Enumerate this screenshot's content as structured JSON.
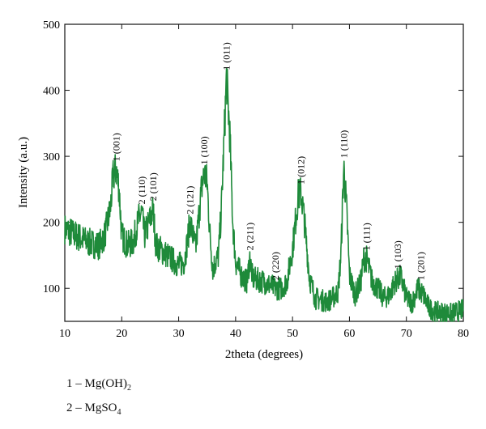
{
  "chart_data": {
    "type": "line",
    "title": "",
    "xlabel": "2theta (degrees)",
    "ylabel": "Intensity (a.u.)",
    "xlim": [
      10,
      80
    ],
    "ylim": [
      50,
      500
    ],
    "xticks": [
      "10",
      "20",
      "30",
      "40",
      "50",
      "60",
      "70",
      "80"
    ],
    "yticks": [
      "100",
      "200",
      "300",
      "400",
      "500"
    ],
    "grid": false,
    "legend": "none",
    "line_color": "#1e8a3a",
    "series": [
      {
        "x": [
          10,
          12,
          14,
          16,
          17,
          18,
          18.5,
          19,
          19.5,
          20,
          21,
          22,
          23,
          23.5,
          24,
          25,
          25.5,
          26,
          28,
          30,
          31,
          32,
          33,
          34,
          34.5,
          35,
          35.5,
          36,
          37,
          37.5,
          38,
          38.4,
          39,
          39.5,
          40,
          41,
          42,
          42.5,
          43,
          45,
          47,
          48,
          49,
          50,
          51,
          51.5,
          52,
          53,
          54,
          56,
          57,
          58,
          58.5,
          59,
          59.5,
          60,
          61,
          62,
          62.5,
          63,
          64,
          65,
          66,
          67,
          68,
          69,
          70,
          71,
          72,
          73,
          74,
          75,
          78,
          80
        ],
        "values": [
          190,
          180,
          170,
          165,
          180,
          220,
          270,
          280,
          255,
          180,
          165,
          170,
          205,
          215,
          180,
          205,
          220,
          165,
          150,
          135,
          140,
          200,
          160,
          250,
          275,
          260,
          180,
          130,
          150,
          220,
          330,
          420,
          330,
          200,
          140,
          120,
          110,
          145,
          115,
          110,
          100,
          100,
          110,
          160,
          240,
          245,
          210,
          115,
          85,
          80,
          85,
          95,
          150,
          285,
          220,
          120,
          90,
          110,
          145,
          145,
          110,
          100,
          85,
          90,
          110,
          118,
          85,
          78,
          100,
          90,
          70,
          65,
          62,
          68
        ]
      }
    ],
    "annotations": [
      {
        "text": "1 (001)",
        "x": 19,
        "y": 285
      },
      {
        "text": "2 (110)",
        "x": 23.5,
        "y": 220
      },
      {
        "text": "2 (101)",
        "x": 25.5,
        "y": 225
      },
      {
        "text": "2 (121)",
        "x": 32,
        "y": 205
      },
      {
        "text": "1 (100)",
        "x": 34.5,
        "y": 280
      },
      {
        "text": "1 (011)",
        "x": 38.4,
        "y": 423
      },
      {
        "text": "2 (211)",
        "x": 42.5,
        "y": 150
      },
      {
        "text": "2 (220)",
        "x": 47,
        "y": 105
      },
      {
        "text": "1 (012)",
        "x": 51.5,
        "y": 250
      },
      {
        "text": "1 (110)",
        "x": 59,
        "y": 290
      },
      {
        "text": "1 (111)",
        "x": 63,
        "y": 150
      },
      {
        "text": "1 (103)",
        "x": 68.5,
        "y": 122
      },
      {
        "text": "1 (201)",
        "x": 72.5,
        "y": 105
      }
    ]
  },
  "legend_items": [
    {
      "num": "1",
      "dash": "–",
      "formula": "Mg(OH)",
      "sub": "2",
      "tail": ""
    },
    {
      "num": "2",
      "dash": "–",
      "formula": "MgSO",
      "sub": "4",
      "tail": ""
    }
  ]
}
